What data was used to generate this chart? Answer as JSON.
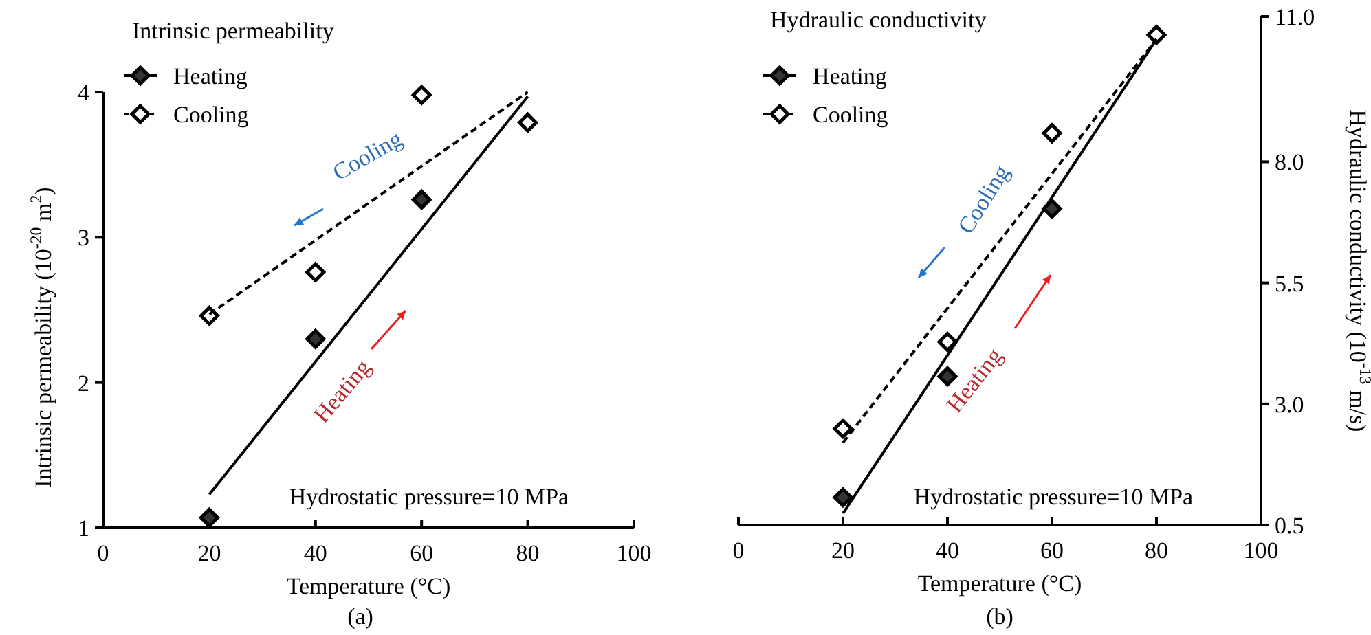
{
  "chart_data": [
    {
      "type": "scatter",
      "title": "Intrinsic permeability",
      "xlabel": "Temperature (°C)",
      "ylabel": "Intrinsic permeability (10$^{-20}$ m$^{2}$)",
      "x": [
        20,
        40,
        60,
        80
      ],
      "xlim": [
        0,
        100
      ],
      "xticks": [
        0,
        20,
        40,
        60,
        80,
        100
      ],
      "ylim": [
        1,
        4
      ],
      "yticks": [
        1,
        2,
        3,
        4
      ],
      "legend": "top left",
      "marker": "diamond",
      "grid": false,
      "series": [
        {
          "name": "Heating",
          "color": "#333333",
          "values": [
            1.07,
            2.3,
            3.26,
            null
          ]
        },
        {
          "name": "Cooling",
          "color": "#000000",
          "values": [
            2.46,
            2.76,
            3.98,
            3.79
          ]
        },
        {
          "type": "line",
          "color": "#000000",
          "values": [
            1.23,
            null,
            null,
            3.97
          ],
          "line_style": "solid",
          "marker": "none"
        },
        {
          "type": "line",
          "color": "#000000",
          "values": [
            2.47,
            null,
            null,
            4.0
          ],
          "line_style": "dashed",
          "marker": "none"
        }
      ],
      "annotations": [
        "Cooling",
        "Heating",
        "Hydrostatic pressure=10 MPa",
        "(a)"
      ]
    },
    {
      "type": "scatter",
      "title": "Hydraulic conductivity",
      "xlabel": "Temperature (°C)",
      "y2label": "Hydraulic conductivity (10$^{-13}$ m/s)",
      "x": [
        20,
        40,
        60,
        80
      ],
      "xlim": [
        0,
        100
      ],
      "xticks": [
        0,
        20,
        40,
        60,
        80,
        100
      ],
      "y2lim": [
        0.5,
        11.0
      ],
      "y2ticks": [
        {
          "value": 0.5,
          "label": "0.5"
        },
        {
          "value": 3.0,
          "label": "3.0"
        },
        {
          "value": 5.5,
          "label": "5.5"
        },
        {
          "value": 8.0,
          "label": "8.0"
        },
        {
          "value": 11.0,
          "label": "11.0"
        }
      ],
      "legend": "top left",
      "marker": "diamond",
      "grid": false,
      "series": [
        {
          "name": "Heating",
          "color": "#333333",
          "axis": "y2",
          "values": [
            1.07,
            3.57,
            7.03,
            null
          ]
        },
        {
          "name": "Cooling",
          "color": "#000000",
          "axis": "y2",
          "values": [
            2.49,
            4.28,
            8.59,
            10.62
          ]
        },
        {
          "type": "line",
          "color": "#000000",
          "axis": "y2",
          "values": [
            0.74,
            null,
            null,
            10.53
          ],
          "line_style": "solid",
          "marker": "none"
        },
        {
          "type": "line",
          "color": "#000000",
          "axis": "y2",
          "values": [
            2.2,
            null,
            null,
            10.53
          ],
          "line_style": "dashed",
          "marker": "none"
        }
      ],
      "annotations": [
        "Cooling",
        "Heating",
        "Hydrostatic pressure=10 MPa",
        "(b)"
      ]
    }
  ]
}
